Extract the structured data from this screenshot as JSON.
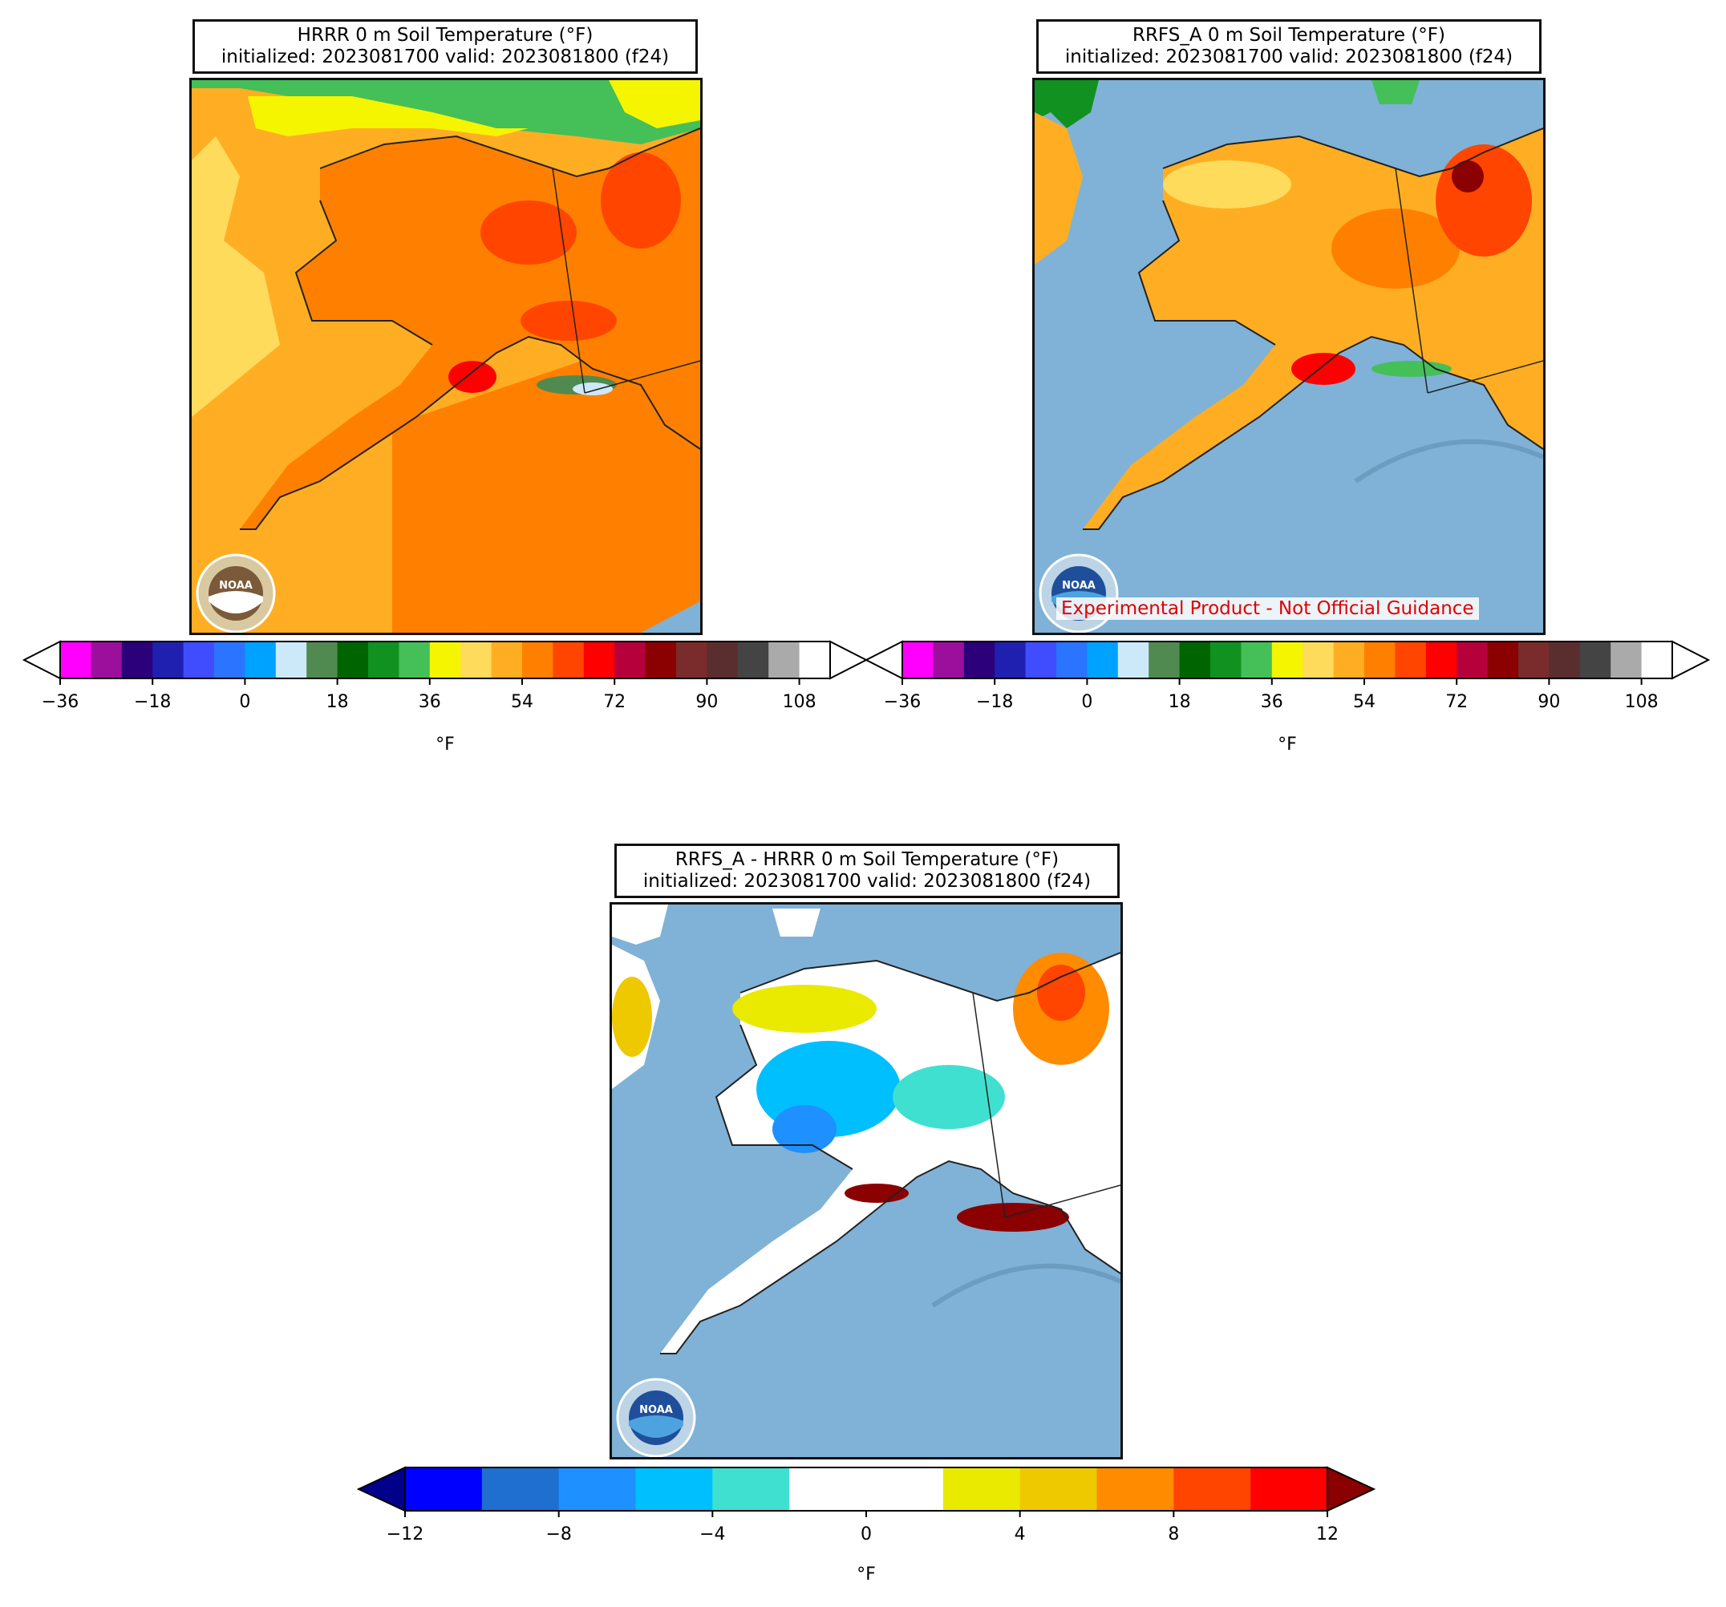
{
  "panels": {
    "hrrr": {
      "title_line1": "HRRR 0 m Soil Temperature (°F)",
      "title_line2": "initialized: 2023081700 valid: 2023081800 (f24)"
    },
    "rrfs": {
      "title_line1": "RRFS_A 0 m Soil Temperature (°F)",
      "title_line2": "initialized: 2023081700 valid: 2023081800 (f24)",
      "watermark": "Experimental Product - Not Official Guidance"
    },
    "diff": {
      "title_line1": "RRFS_A - HRRR 0 m Soil Temperature (°F)",
      "title_line2": "initialized: 2023081700 valid: 2023081800 (f24)"
    }
  },
  "logo_text": "NOAA",
  "temp_colorbar": {
    "unit": "°F",
    "ticks": [
      "−36",
      "−18",
      "0",
      "18",
      "36",
      "54",
      "72",
      "90",
      "108"
    ],
    "colors": [
      "#ff00ff",
      "#9c0f9c",
      "#2b007a",
      "#1f1fb0",
      "#3f4dff",
      "#2b74ff",
      "#00a2ff",
      "#cce9fa",
      "#508a50",
      "#006400",
      "#109120",
      "#45bf58",
      "#f5f500",
      "#ffdb5c",
      "#ffae24",
      "#ff8000",
      "#ff4500",
      "#ff0000",
      "#b5003c",
      "#8b0000",
      "#7a2b2b",
      "#5a2e2e",
      "#444444",
      "#aaaaaa"
    ]
  },
  "diff_colorbar": {
    "unit": "°F",
    "ticks": [
      "−12",
      "−8",
      "−4",
      "0",
      "4",
      "8",
      "12"
    ],
    "colors": [
      "#0000ff",
      "#1e6fcf",
      "#1e90ff",
      "#00bfff",
      "#40e0d0",
      "#ffffff",
      "#ffffff",
      "#eaea00",
      "#eec900",
      "#ff8c00",
      "#ff4500",
      "#ff0000"
    ],
    "under_color": "#00008b",
    "over_color": "#8b0000"
  }
}
